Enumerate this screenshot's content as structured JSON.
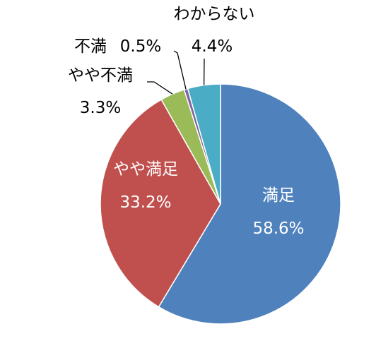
{
  "chart_data": {
    "type": "pie",
    "start_angle_deg": 0,
    "direction": "clockwise",
    "slices": [
      {
        "name": "満足",
        "value": 58.6,
        "label": "58.6%",
        "color": "#4F81BD",
        "label_color": "#FFFFFF"
      },
      {
        "name": "やや満足",
        "value": 33.2,
        "label": "33.2%",
        "color": "#C0504D",
        "label_color": "#FFFFFF"
      },
      {
        "name": "やや不満",
        "value": 3.3,
        "label": "3.3%",
        "color": "#9BBB59",
        "label_color": "#000000"
      },
      {
        "name": "不満",
        "value": 0.5,
        "label": "0.5%",
        "color": "#8064A2",
        "label_color": "#000000"
      },
      {
        "name": "わからない",
        "value": 4.4,
        "label": "4.4%",
        "color": "#4BACC6",
        "label_color": "#000000"
      }
    ]
  }
}
